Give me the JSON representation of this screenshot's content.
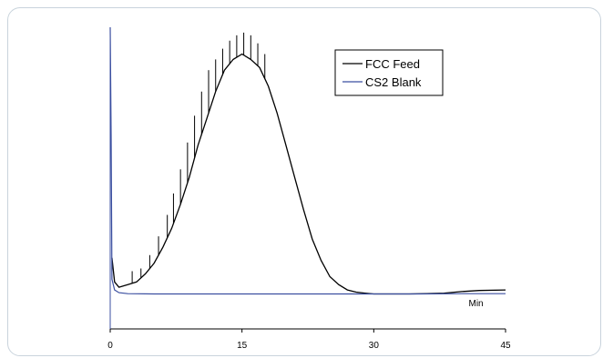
{
  "chart_data": {
    "type": "line",
    "title": "",
    "xlabel": "Min",
    "ylabel": "",
    "xlim": [
      0,
      45
    ],
    "ylim": [
      0,
      100
    ],
    "x_ticks": [
      "0",
      "15",
      "30",
      "45"
    ],
    "grid": false,
    "legend_position": "top-right",
    "series": [
      {
        "name": "FCC Feed",
        "color": "#000000",
        "x": [
          0.2,
          0.5,
          1,
          2,
          3,
          4,
          5,
          6,
          7,
          8,
          9,
          10,
          11,
          12,
          13,
          14,
          15,
          16,
          17,
          18,
          19,
          20,
          21,
          22,
          23,
          24,
          25,
          26,
          27,
          28,
          29,
          30,
          32,
          34,
          36,
          38,
          40,
          42,
          45
        ],
        "y": [
          14,
          5,
          3,
          4,
          5,
          8,
          12,
          18,
          25,
          34,
          44,
          56,
          66,
          76,
          84,
          88,
          90,
          88,
          85,
          78,
          68,
          56,
          44,
          32,
          21,
          13,
          7,
          4,
          2,
          1.2,
          0.8,
          0.5,
          0.5,
          0.5,
          0.6,
          0.8,
          1.4,
          1.8,
          2
        ]
      },
      {
        "name": "CS2 Blank",
        "color": "#3b4fa0",
        "x": [
          0,
          0.1,
          0.2,
          0.5,
          1,
          2,
          5,
          10,
          15,
          20,
          25,
          30,
          35,
          40,
          45
        ],
        "y": [
          100,
          60,
          6,
          2,
          1,
          0.6,
          0.5,
          0.5,
          0.5,
          0.5,
          0.5,
          0.5,
          0.5,
          0.6,
          0.6
        ]
      }
    ],
    "spikes": {
      "x": [
        2.5,
        3.5,
        4.5,
        5.5,
        6.5,
        7.2,
        8.0,
        8.8,
        9.6,
        10.4,
        11.2,
        12.0,
        12.8,
        13.6,
        14.4,
        15.2,
        16.0,
        16.8,
        17.6
      ],
      "y": [
        9,
        10,
        15,
        22,
        30,
        38,
        47,
        57,
        67,
        76,
        84,
        88,
        92,
        95,
        97,
        98,
        97,
        94,
        90
      ]
    }
  }
}
